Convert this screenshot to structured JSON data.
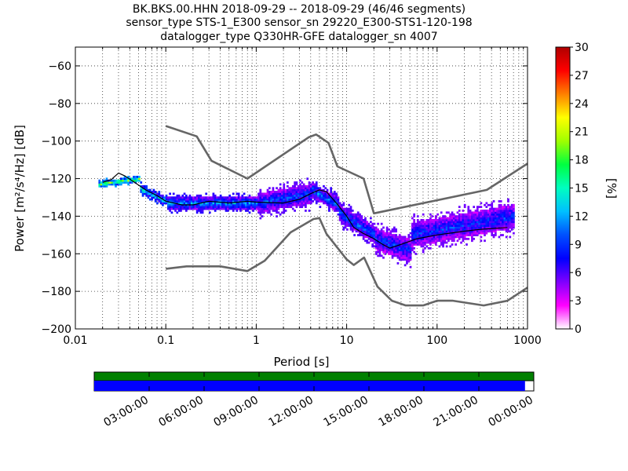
{
  "chart_data": {
    "type": "heatmap",
    "title": [
      "BK.BKS.00.HHN   2018-09-29 -- 2018-09-29  (46/46 segments)",
      "sensor_type STS-1_E300 sensor_sn 29220_E300-STS1-120-198",
      "datalogger_type Q330HR-GFE datalogger_sn 4007"
    ],
    "xlabel": "Period [s]",
    "ylabel": "Power [m²/s⁴/Hz] [dB]",
    "xscale": "log",
    "xlim": [
      0.01,
      1000
    ],
    "ylim": [
      -200,
      -50
    ],
    "x_ticks": [
      0.01,
      0.1,
      1,
      10,
      100,
      1000
    ],
    "x_tick_labels": [
      "0.01",
      "0.1",
      "1",
      "10",
      "100",
      "1000"
    ],
    "y_ticks": [
      -60,
      -80,
      -100,
      -120,
      -140,
      -160,
      -180,
      -200
    ],
    "y_tick_labels": [
      "−60",
      "−80",
      "−100",
      "−120",
      "−140",
      "−160",
      "−180",
      "−200"
    ],
    "grid": true,
    "colorbar": {
      "label": "[%]",
      "range": [
        0,
        30
      ],
      "ticks": [
        0,
        3,
        6,
        9,
        12,
        15,
        18,
        21,
        24,
        27,
        30
      ],
      "tick_labels": [
        "0",
        "3",
        "6",
        "9",
        "12",
        "15",
        "18",
        "21",
        "24",
        "27",
        "30"
      ]
    },
    "series": [
      {
        "kind": "noise-model-high",
        "points": [
          [
            0.1,
            -92
          ],
          [
            0.22,
            -97.5
          ],
          [
            0.32,
            -110.5
          ],
          [
            0.8,
            -120
          ],
          [
            3.8,
            -98
          ],
          [
            4.6,
            -96.5
          ],
          [
            6.3,
            -101
          ],
          [
            7.9,
            -113.5
          ],
          [
            15.4,
            -120
          ],
          [
            20,
            -138.5
          ],
          [
            354.8,
            -126
          ],
          [
            1000,
            -112
          ]
        ]
      },
      {
        "kind": "noise-model-low",
        "points": [
          [
            0.1,
            -168
          ],
          [
            0.17,
            -166.7
          ],
          [
            0.4,
            -166.7
          ],
          [
            0.8,
            -169.2
          ],
          [
            1.24,
            -163.7
          ],
          [
            2.4,
            -148.6
          ],
          [
            4.3,
            -141.5
          ],
          [
            5.0,
            -141
          ],
          [
            6.0,
            -149.5
          ],
          [
            10,
            -163
          ],
          [
            12,
            -166
          ],
          [
            15.6,
            -162
          ],
          [
            21.9,
            -177.5
          ],
          [
            31.6,
            -185
          ],
          [
            45,
            -187.5
          ],
          [
            70,
            -187.5
          ],
          [
            100,
            -185
          ],
          [
            150,
            -185
          ],
          [
            328,
            -187.5
          ],
          [
            600,
            -185
          ],
          [
            1000,
            -178
          ]
        ]
      },
      {
        "kind": "mean-psd",
        "points": [
          [
            0.02,
            -122
          ],
          [
            0.025,
            -120.5
          ],
          [
            0.03,
            -117
          ],
          [
            0.035,
            -118.5
          ],
          [
            0.045,
            -122
          ],
          [
            0.06,
            -126
          ],
          [
            0.08,
            -129
          ],
          [
            0.1,
            -132
          ],
          [
            0.15,
            -134
          ],
          [
            0.2,
            -134
          ],
          [
            0.3,
            -132
          ],
          [
            0.5,
            -133
          ],
          [
            0.8,
            -132
          ],
          [
            1.0,
            -132.5
          ],
          [
            2.0,
            -133
          ],
          [
            3.0,
            -131
          ],
          [
            4.0,
            -128
          ],
          [
            5.0,
            -126
          ],
          [
            6.0,
            -127
          ],
          [
            8.0,
            -134
          ],
          [
            10,
            -140
          ],
          [
            12,
            -146
          ],
          [
            15,
            -149
          ],
          [
            20,
            -152
          ],
          [
            25,
            -155
          ],
          [
            30,
            -157
          ],
          [
            40,
            -155
          ],
          [
            60,
            -152
          ],
          [
            100,
            -150
          ],
          [
            200,
            -148
          ],
          [
            300,
            -147
          ],
          [
            600,
            -146
          ]
        ]
      }
    ],
    "heatmap_bands": [
      {
        "x": [
          0.018,
          0.05
        ],
        "center": [
          -123,
          -120
        ],
        "spread": 2
      },
      {
        "x": [
          0.05,
          0.1
        ],
        "center": [
          -125,
          -132
        ],
        "spread": 3
      },
      {
        "x": [
          0.1,
          1.0
        ],
        "center": [
          -133,
          -133
        ],
        "spread": 5
      },
      {
        "x": [
          1.0,
          4.0
        ],
        "center": [
          -133,
          -128
        ],
        "spread": 8
      },
      {
        "x": [
          4.0,
          8.0
        ],
        "center": [
          -126,
          -134
        ],
        "spread": 6
      },
      {
        "x": [
          8.0,
          20
        ],
        "center": [
          -138,
          -150
        ],
        "spread": 7
      },
      {
        "x": [
          20,
          50
        ],
        "center": [
          -152,
          -158
        ],
        "spread": 9
      },
      {
        "x": [
          50,
          700
        ],
        "center": [
          -150,
          -140
        ],
        "spread": 10
      }
    ]
  },
  "timeline": {
    "tick_labels": [
      "03:00:00",
      "06:00:00",
      "09:00:00",
      "12:00:00",
      "15:00:00",
      "18:00:00",
      "21:00:00",
      "00:00:00"
    ],
    "data_coverage": 0.98,
    "colors": {
      "top_bar": "#008000",
      "bottom_bar": "#0000ff"
    }
  },
  "colors": {
    "noise_model": "#666666",
    "mean_line": "#000000",
    "colormap": [
      "#ffffff",
      "#ff00ff",
      "#7f00ff",
      "#0000ff",
      "#0050ff",
      "#00c0ff",
      "#00ffc0",
      "#00ff40",
      "#a0ff00",
      "#ffff00",
      "#ff8000",
      "#ff0000",
      "#b00000"
    ]
  }
}
